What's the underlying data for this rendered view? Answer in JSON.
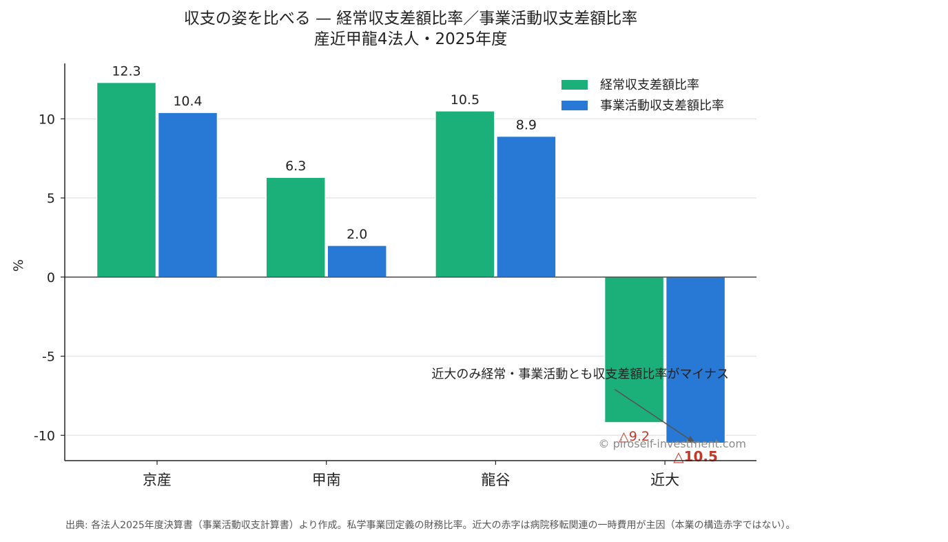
{
  "chart_data": {
    "type": "bar",
    "title": "収支の姿を比べる — 経常収支差額比率／事業活動収支差額比率",
    "subtitle": "産近甲龍4法人・2025年度",
    "ylabel": "%",
    "xlabel": "",
    "categories": [
      "京産",
      "甲南",
      "龍谷",
      "近大"
    ],
    "series": [
      {
        "name": "経常収支差額比率",
        "color": "#1bb07a",
        "values": [
          12.3,
          6.3,
          10.5,
          -9.2
        ]
      },
      {
        "name": "事業活動収支差額比率",
        "color": "#2878d6",
        "values": [
          10.4,
          2.0,
          8.9,
          -10.5
        ]
      }
    ],
    "value_labels": [
      [
        "12.3",
        "6.3",
        "10.5",
        "△9.2"
      ],
      [
        "10.4",
        "2.0",
        "8.9",
        "△10.5"
      ]
    ],
    "ylim": [
      -11.6,
      13.5
    ],
    "yticks": [
      -10,
      -5,
      0,
      5,
      10
    ],
    "ytick_labels": [
      "-10",
      "-5",
      "0",
      "5",
      "10"
    ],
    "grid": "horizontal",
    "legend_position": "top-right",
    "annotation": {
      "text": "近大のみ経常・事業活動とも収支差額比率がマイナス",
      "text_at": {
        "category_index": 2.5,
        "value": -6.4
      },
      "points_to": {
        "category_index": 3.18,
        "value": -10.5
      }
    },
    "watermark": "© piroself-investment.com",
    "source": "出典: 各法人2025年度決算書（事業活動収支計算書）より作成。私学事業団定義の財務比率。近大の赤字は病院移転関連の一時費用が主因（本業の構造赤字ではない）。"
  }
}
